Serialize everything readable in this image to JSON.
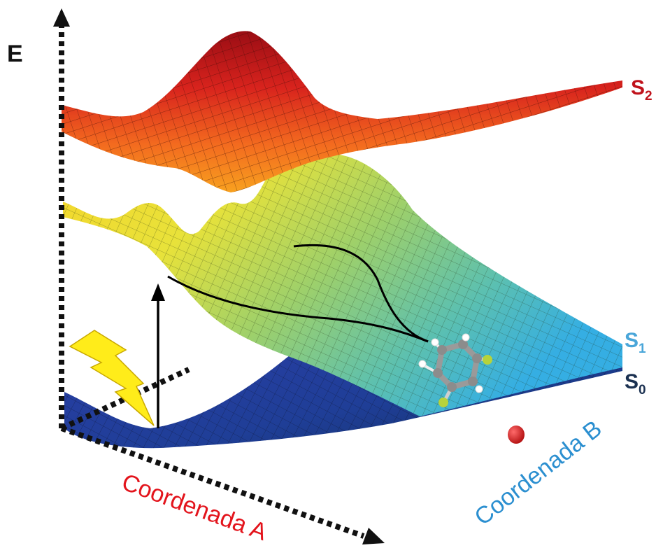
{
  "axes": {
    "energy_label": "E",
    "coord_a_label": "Coordenada A",
    "coord_b_label": "Coordenada B"
  },
  "states": [
    {
      "id": "s2",
      "base": "S",
      "sub": "2"
    },
    {
      "id": "s1",
      "base": "S",
      "sub": "1"
    },
    {
      "id": "s0",
      "base": "S",
      "sub": "0"
    }
  ],
  "colors": {
    "s2_label": "#c0121b",
    "s1_label": "#4aa6d9",
    "s0_label": "#1a3050",
    "coord_a": "#e3141c",
    "coord_b": "#2b8fd0",
    "axis": "#111111",
    "lightning": "#ffec1a",
    "pathway": "#000000",
    "red_dot": "#d11a1a"
  },
  "icons": {
    "excitation": "lightning-bolt-icon",
    "vertical_excitation": "up-arrow-icon",
    "molecule": "difluorobenzene-molecule-icon",
    "atom": "red-atom-icon"
  }
}
